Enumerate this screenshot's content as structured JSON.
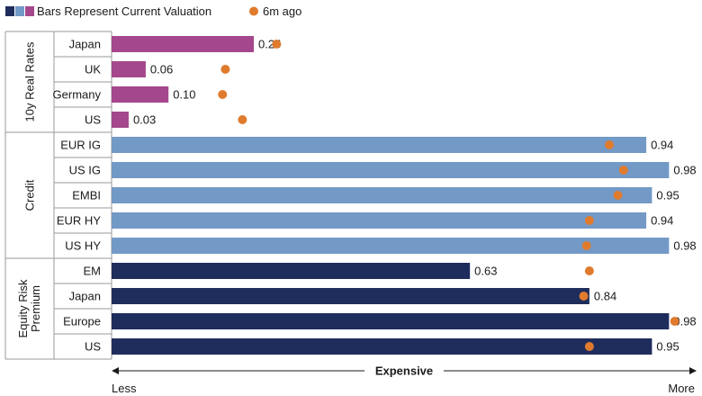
{
  "chart_data": {
    "type": "bar",
    "orientation": "horizontal",
    "legend": {
      "bars_label": "Bars Represent Current Valuation",
      "dot_label": "6m ago",
      "placement": "top-left"
    },
    "axis": {
      "label": "Expensive",
      "min_label": "Less",
      "max_label": "More",
      "range": [
        0,
        1
      ]
    },
    "groups": [
      {
        "name": "10y Real Rates",
        "color": "#a5478c",
        "items": [
          {
            "label": "Japan",
            "current": 0.25,
            "current_label": "0.25",
            "six_months_ago": 0.29
          },
          {
            "label": "UK",
            "current": 0.06,
            "current_label": "0.06",
            "six_months_ago": 0.2
          },
          {
            "label": "Germany",
            "current": 0.1,
            "current_label": "0.10",
            "six_months_ago": 0.195
          },
          {
            "label": "US",
            "current": 0.03,
            "current_label": "0.03",
            "six_months_ago": 0.23
          }
        ]
      },
      {
        "name": "Credit",
        "color": "#7399c6",
        "items": [
          {
            "label": "EUR IG",
            "current": 0.94,
            "current_label": "0.94",
            "six_months_ago": 0.875
          },
          {
            "label": "US IG",
            "current": 0.98,
            "current_label": "0.98",
            "six_months_ago": 0.9
          },
          {
            "label": "EMBI",
            "current": 0.95,
            "current_label": "0.95",
            "six_months_ago": 0.89
          },
          {
            "label": "EUR HY",
            "current": 0.94,
            "current_label": "0.94",
            "six_months_ago": 0.84
          },
          {
            "label": "US HY",
            "current": 0.98,
            "current_label": "0.98",
            "six_months_ago": 0.835
          }
        ]
      },
      {
        "name": "Equity Risk Premium",
        "name_lines": [
          "Equity Risk",
          "Premium"
        ],
        "color": "#1f2d5c",
        "items": [
          {
            "label": "EM",
            "current": 0.63,
            "current_label": "0.63",
            "six_months_ago": 0.84
          },
          {
            "label": "Japan",
            "current": 0.84,
            "current_label": "0.84",
            "six_months_ago": 0.83
          },
          {
            "label": "Europe",
            "current": 0.98,
            "current_label": "0.98",
            "six_months_ago": 0.99
          },
          {
            "label": "US",
            "current": 0.95,
            "current_label": "0.95",
            "six_months_ago": 0.84
          }
        ]
      }
    ],
    "dot_color": "#e07b2e",
    "legend_swatch_colors": [
      "#1f2d5c",
      "#7399c6",
      "#a5478c"
    ]
  }
}
